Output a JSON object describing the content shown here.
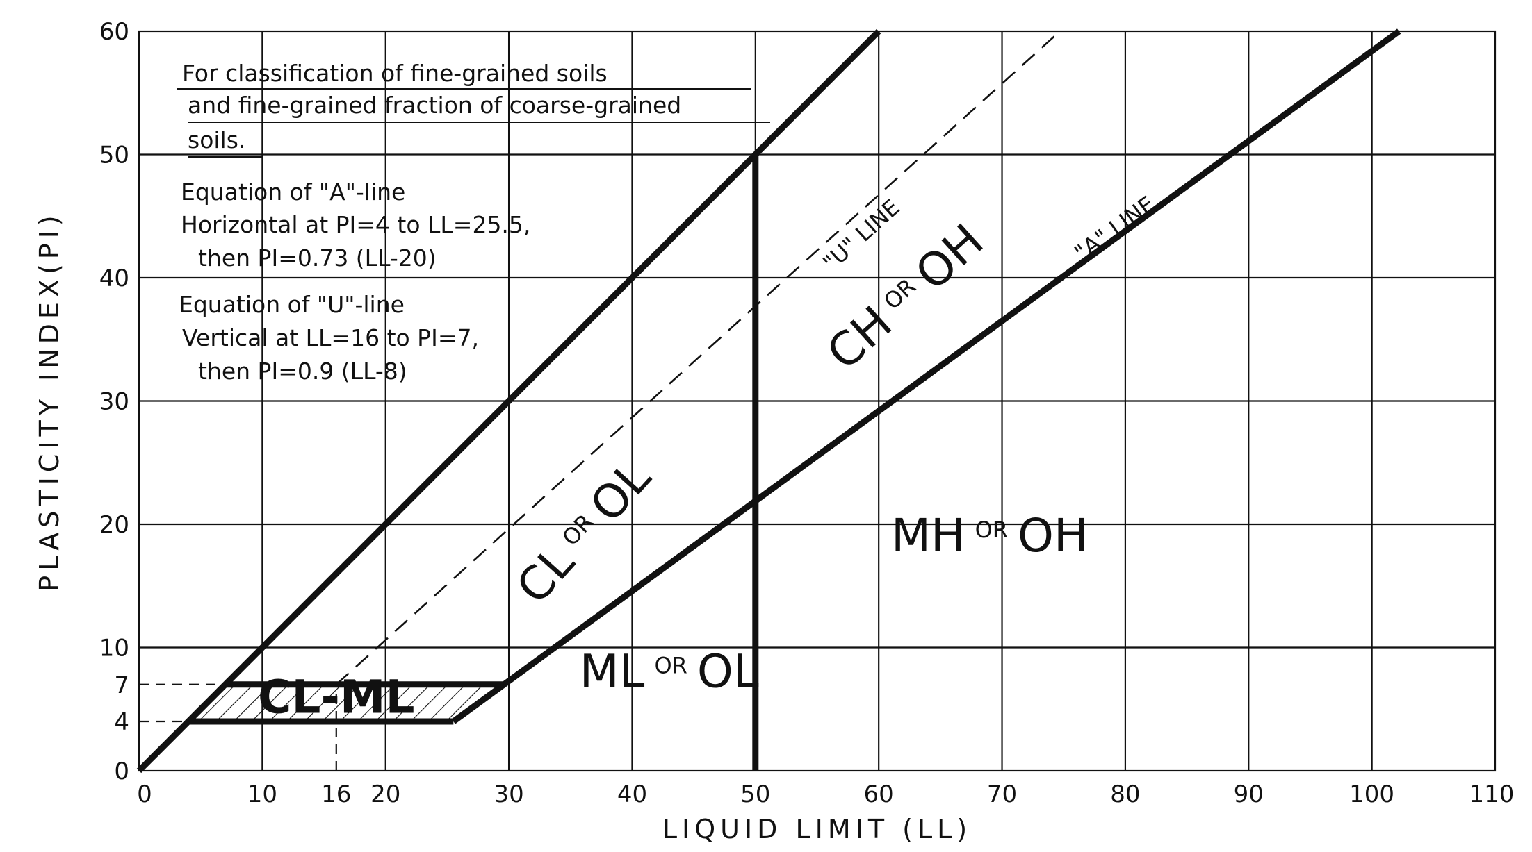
{
  "chart_data": {
    "type": "line",
    "title": "",
    "xlabel": "LIQUID LIMIT (LL)",
    "ylabel": "PLASTICITY INDEX(PI)",
    "xlim": [
      0,
      110
    ],
    "ylim": [
      0,
      60
    ],
    "grid": true,
    "x_ticks": [
      0,
      10,
      16,
      20,
      30,
      40,
      50,
      60,
      70,
      80,
      90,
      100,
      110
    ],
    "y_ticks": [
      0,
      4,
      7,
      10,
      20,
      30,
      40,
      50,
      60
    ],
    "note_lines": [
      "For classification of fine-grained soils",
      "and fine-grained fraction of coarse-grained",
      "soils."
    ],
    "equations": [
      "Equation of \"A\"-line",
      "Horizontal at PI=4 to LL=25.5,",
      "then PI=0.73 (LL-20)",
      "Equation of \"U\"-line",
      "Vertical at LL=16 to PI=7,",
      "then PI=0.9 (LL-8)"
    ],
    "series": [
      {
        "name": "\"A\" LINE",
        "style": "solid",
        "x": [
          25.5,
          102.2
        ],
        "y": [
          4,
          60
        ]
      },
      {
        "name": "\"U\" LINE",
        "style": "dashed",
        "x": [
          16,
          74.7
        ],
        "y": [
          7,
          60
        ]
      },
      {
        "name": "",
        "style": "solid",
        "x": [
          0,
          60
        ],
        "y": [
          0,
          60
        ]
      },
      {
        "name": "",
        "style": "solid",
        "x": [
          50,
          50
        ],
        "y": [
          0,
          50
        ]
      }
    ],
    "cl_ml_zone": {
      "x": [
        4,
        25.5,
        29.6,
        7
      ],
      "y": [
        4,
        4,
        7,
        7
      ]
    },
    "guide_lines": [
      {
        "x": [
          0,
          4
        ],
        "y": [
          4,
          4
        ]
      },
      {
        "x": [
          0,
          7
        ],
        "y": [
          7,
          7
        ]
      },
      {
        "x": [
          16,
          16
        ],
        "y": [
          0,
          7
        ]
      }
    ],
    "zones": [
      {
        "id": "cl-ml",
        "text": "CL-ML",
        "x": 16,
        "y": 5.5
      },
      {
        "id": "ml-ol",
        "main1": "ML",
        "or": "OR",
        "main2": "OL",
        "x": 43,
        "y": 6.8
      },
      {
        "id": "cl-ol",
        "main1": "CL",
        "or": "OR",
        "main2": "OL",
        "x": 37,
        "y": 18.5
      },
      {
        "id": "ch-oh",
        "main1": "CH",
        "or": "OR",
        "main2": "OH",
        "x": 63,
        "y": 37.5
      },
      {
        "id": "mh-oh",
        "main1": "MH",
        "or": "OR",
        "main2": "OH",
        "x": 69,
        "y": 17.8
      }
    ],
    "line_labels": [
      {
        "id": "u-line-label",
        "text": "\"U\" LINE",
        "x": 59,
        "y": 43,
        "angle": -42
      },
      {
        "id": "a-line-label",
        "text": "\"A\" LINE",
        "x": 79.5,
        "y": 43.5,
        "angle": -36
      }
    ]
  }
}
